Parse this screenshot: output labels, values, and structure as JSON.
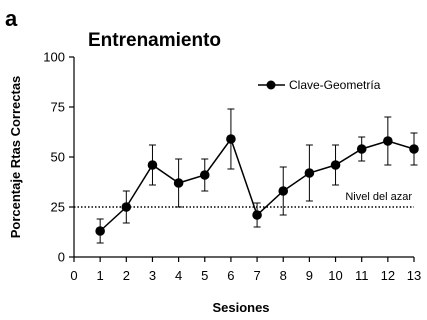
{
  "panel_label": "a",
  "chart_data": {
    "type": "line",
    "title": "Entrenamiento",
    "xlabel": "Sesiones",
    "ylabel": "Porcentaje Rtas Correctas",
    "xlim": [
      0,
      13
    ],
    "ylim": [
      0,
      100
    ],
    "x_ticks": [
      "0",
      "1",
      "2",
      "3",
      "4",
      "5",
      "6",
      "7",
      "8",
      "9",
      "10",
      "11",
      "12",
      "13"
    ],
    "y_ticks": [
      "0",
      "25",
      "50",
      "75",
      "100"
    ],
    "grid": false,
    "legend_position": "top-right",
    "series": [
      {
        "name": "Clave-Geometría",
        "color": "#000000",
        "marker": "circle",
        "x": [
          1,
          2,
          3,
          4,
          5,
          6,
          7,
          8,
          9,
          10,
          11,
          12,
          13
        ],
        "y": [
          13,
          25,
          46,
          37,
          41,
          59,
          21,
          33,
          42,
          46,
          54,
          58,
          54
        ],
        "error": [
          6,
          8,
          10,
          12,
          8,
          15,
          6,
          12,
          14,
          10,
          6,
          12,
          8
        ]
      }
    ],
    "reference_line": {
      "y": 25,
      "label": "Nivel del azar",
      "style": "dotted"
    }
  }
}
